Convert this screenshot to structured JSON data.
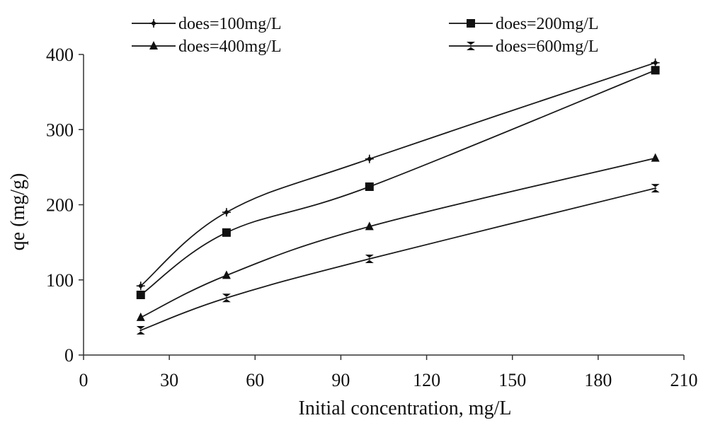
{
  "chart_data": {
    "type": "line",
    "xlabel": "Initial concentration, mg/L",
    "ylabel": "qe (mg/g)",
    "xlim": [
      0,
      210
    ],
    "ylim": [
      0,
      400
    ],
    "xticks": [
      0,
      30,
      60,
      90,
      120,
      150,
      180,
      210
    ],
    "yticks": [
      0,
      100,
      200,
      300,
      400
    ],
    "grid": false,
    "legend_position": "top",
    "x": [
      20,
      50,
      100,
      200
    ],
    "series": [
      {
        "name": "does=100mg/L",
        "marker": "plus-diamond",
        "values": [
          92,
          190,
          261,
          389
        ]
      },
      {
        "name": "does=200mg/L",
        "marker": "square",
        "values": [
          80,
          163,
          224,
          379
        ]
      },
      {
        "name": "does=400mg/L",
        "marker": "triangle",
        "values": [
          50,
          106,
          171,
          262
        ]
      },
      {
        "name": "does=600mg/L",
        "marker": "hourglass",
        "values": [
          33,
          76,
          128,
          222
        ]
      }
    ]
  }
}
